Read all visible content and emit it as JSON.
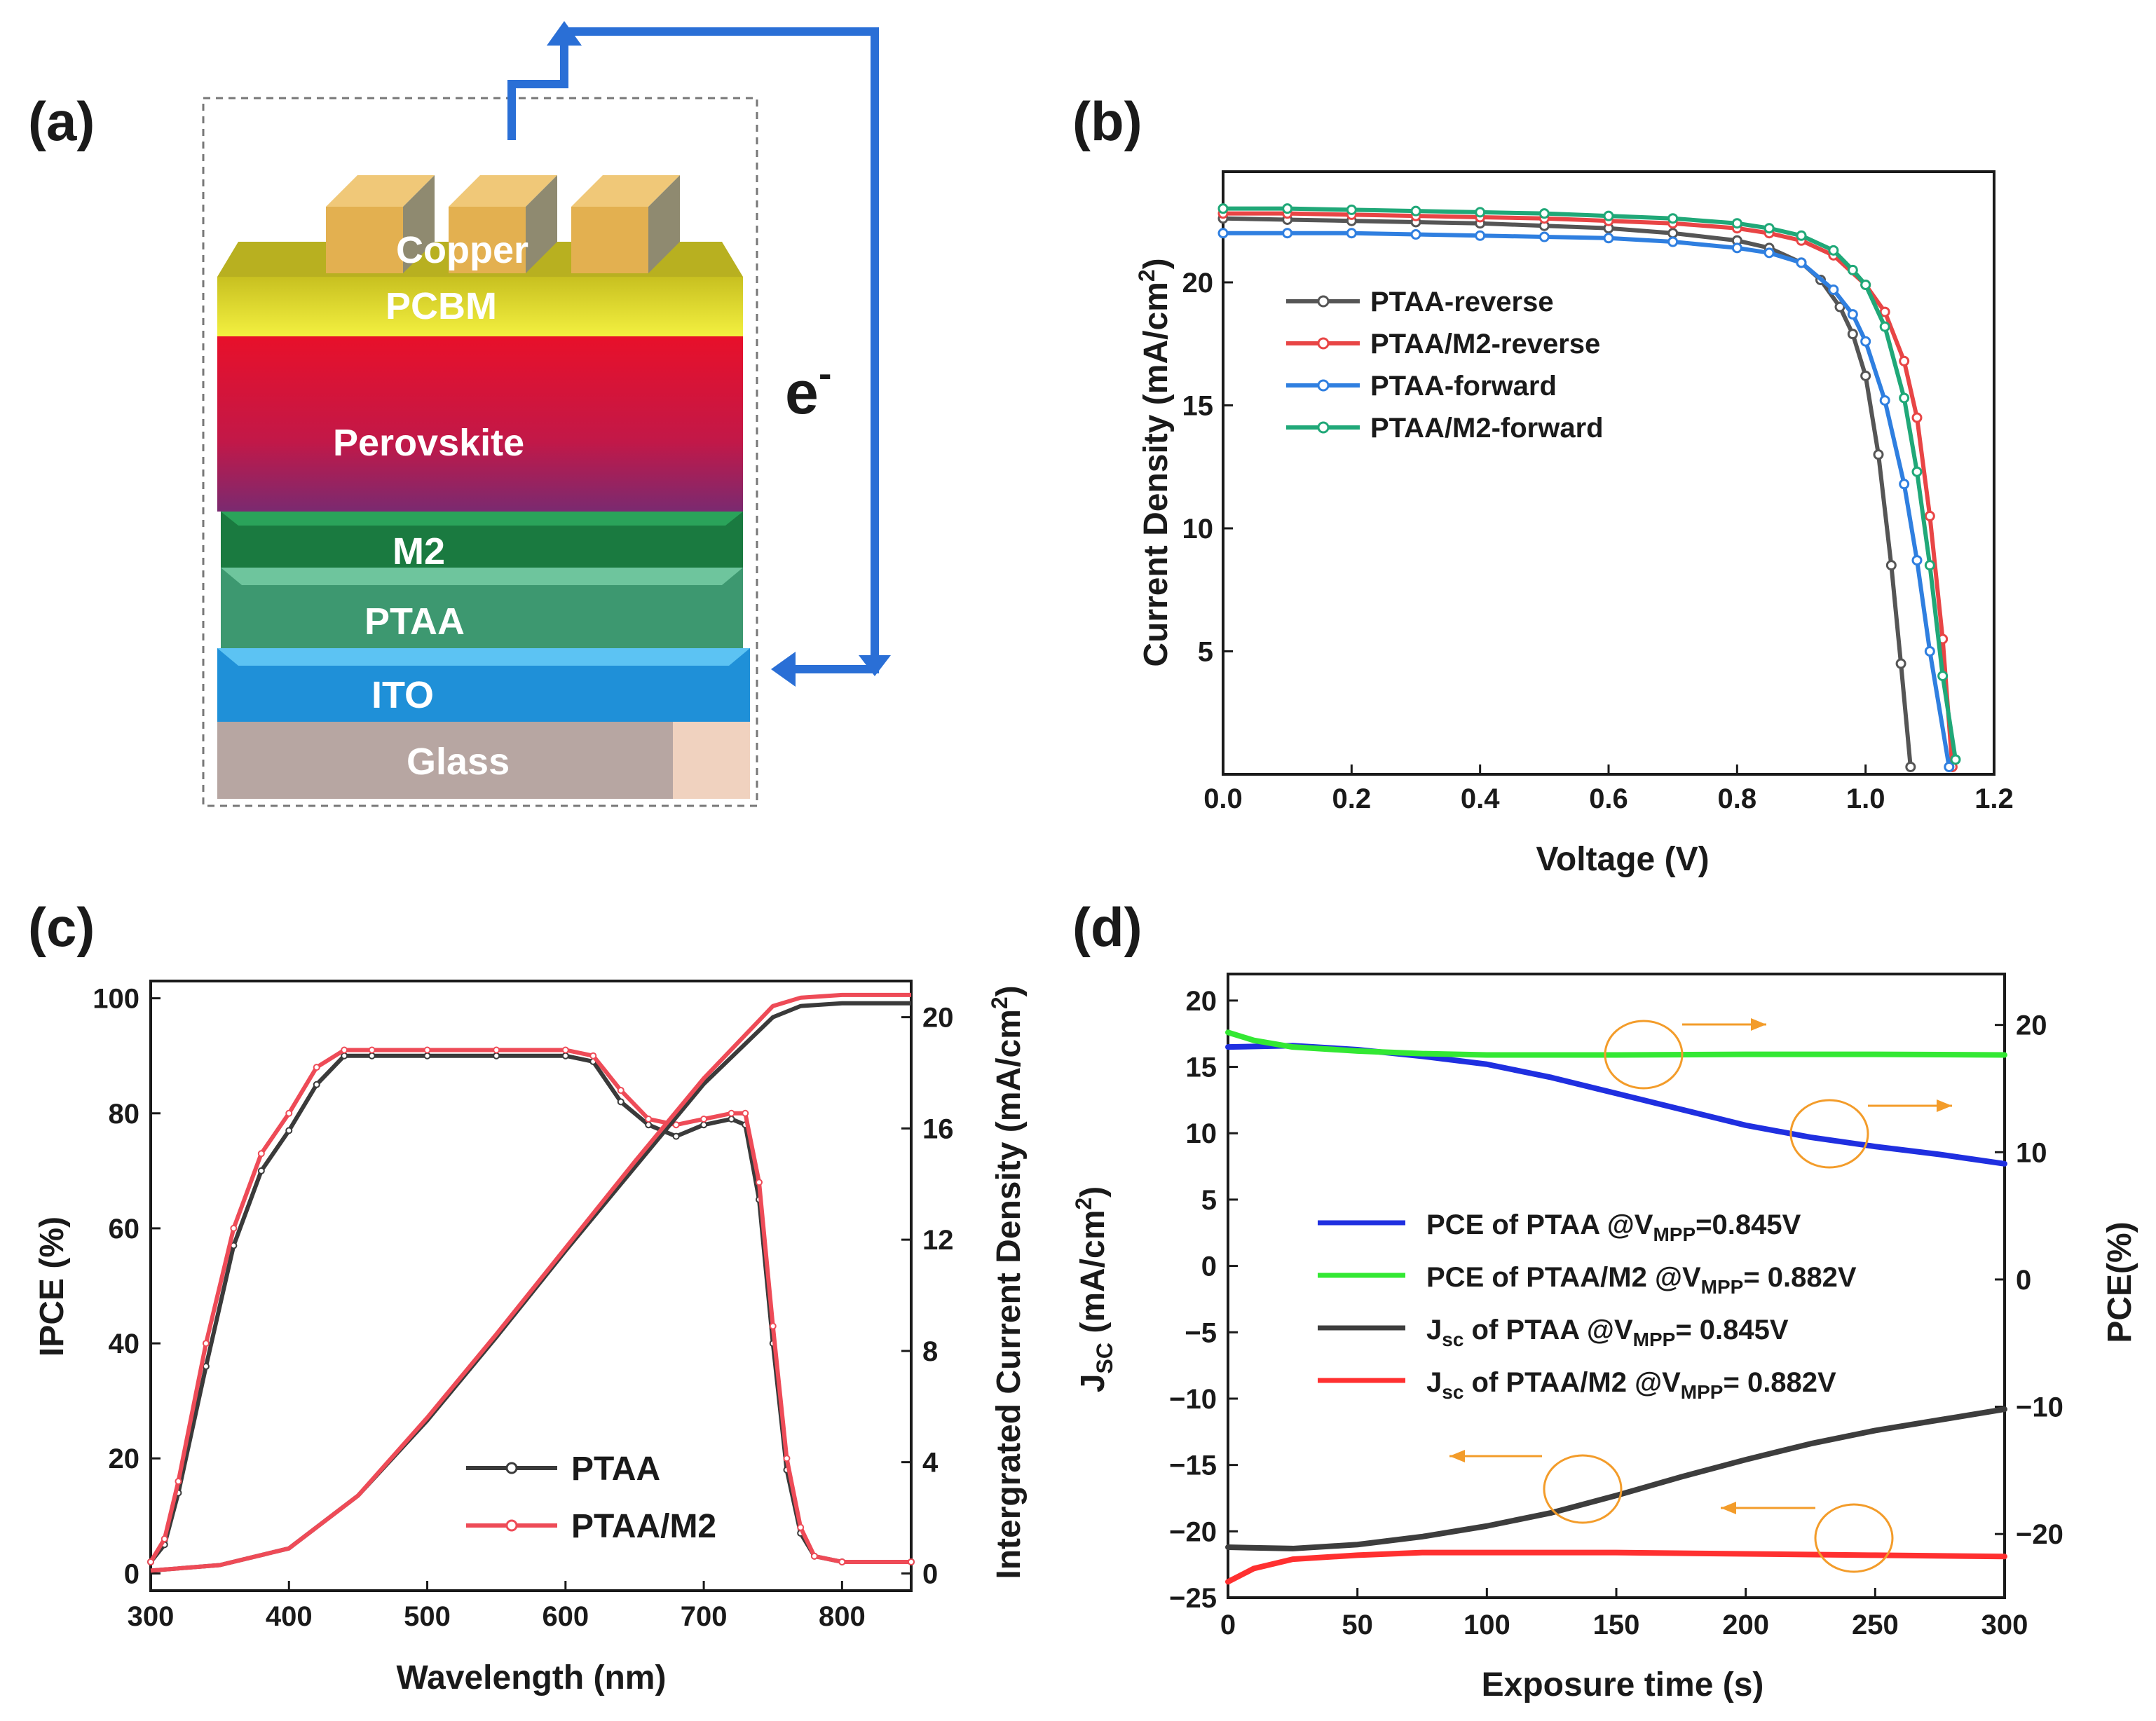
{
  "panels": {
    "a": {
      "label": "(a)",
      "layers": [
        "Copper",
        "PCBM",
        "Perovskite",
        "M2",
        "PTAA",
        "ITO",
        "Glass"
      ],
      "electron_label": "e",
      "electron_sup": "-"
    },
    "b": {
      "label": "(b)"
    },
    "c": {
      "label": "(c)"
    },
    "d": {
      "label": "(d)"
    }
  },
  "colors": {
    "axis": "#1a1a1a",
    "arrow_blue": "#2a6fd6",
    "annot_orange": "#f39c2a"
  },
  "chart_data": [
    {
      "id": "b",
      "type": "line",
      "xlabel": "Voltage (V)",
      "ylabel": "Current Density (mA/cm",
      "ylabel_sup": "2",
      "ylabel_tail": ")",
      "xlim": [
        0,
        1.2
      ],
      "ylim": [
        0,
        24.5
      ],
      "xticks": [
        "0.0",
        "0.2",
        "0.4",
        "0.6",
        "0.8",
        "1.0",
        "1.2"
      ],
      "yticks": [
        "5",
        "10",
        "15",
        "20"
      ],
      "legend_position": "top-left",
      "series": [
        {
          "name": "PTAA-reverse",
          "color": "#555555",
          "x": [
            0,
            0.1,
            0.2,
            0.3,
            0.4,
            0.5,
            0.6,
            0.7,
            0.8,
            0.85,
            0.9,
            0.93,
            0.96,
            0.98,
            1.0,
            1.02,
            1.04,
            1.055,
            1.07
          ],
          "y": [
            22.6,
            22.55,
            22.5,
            22.45,
            22.4,
            22.3,
            22.2,
            22.0,
            21.7,
            21.4,
            20.8,
            20.1,
            19.0,
            17.9,
            16.2,
            13.0,
            8.5,
            4.5,
            0.3
          ]
        },
        {
          "name": "PTAA/M2-reverse",
          "color": "#e84545",
          "x": [
            0,
            0.1,
            0.2,
            0.3,
            0.4,
            0.5,
            0.6,
            0.7,
            0.8,
            0.85,
            0.9,
            0.95,
            1.0,
            1.03,
            1.06,
            1.08,
            1.1,
            1.12,
            1.135
          ],
          "y": [
            22.8,
            22.8,
            22.75,
            22.7,
            22.65,
            22.6,
            22.5,
            22.4,
            22.2,
            22.0,
            21.7,
            21.1,
            19.9,
            18.8,
            16.8,
            14.5,
            10.5,
            5.5,
            0.3
          ]
        },
        {
          "name": "PTAA-forward",
          "color": "#2f7fe0",
          "x": [
            0,
            0.1,
            0.2,
            0.3,
            0.4,
            0.5,
            0.6,
            0.7,
            0.8,
            0.85,
            0.9,
            0.95,
            0.98,
            1.0,
            1.03,
            1.06,
            1.08,
            1.1,
            1.13
          ],
          "y": [
            22.0,
            22.0,
            22.0,
            21.95,
            21.9,
            21.85,
            21.8,
            21.65,
            21.4,
            21.2,
            20.8,
            19.7,
            18.7,
            17.6,
            15.2,
            11.8,
            8.7,
            5.0,
            0.3
          ]
        },
        {
          "name": "PTAA/M2-forward",
          "color": "#20a878",
          "x": [
            0,
            0.1,
            0.2,
            0.3,
            0.4,
            0.5,
            0.6,
            0.7,
            0.8,
            0.85,
            0.9,
            0.95,
            0.98,
            1.0,
            1.03,
            1.06,
            1.08,
            1.1,
            1.12,
            1.14
          ],
          "y": [
            23.0,
            23.0,
            22.95,
            22.9,
            22.85,
            22.8,
            22.7,
            22.6,
            22.4,
            22.2,
            21.9,
            21.3,
            20.5,
            19.9,
            18.2,
            15.3,
            12.3,
            8.5,
            4.0,
            0.6
          ]
        }
      ]
    },
    {
      "id": "c",
      "type": "line",
      "xlabel": "Wavelength (nm)",
      "ylabel": "IPCE (%)",
      "y2label": "Intergrated Current Density  (mA/cm",
      "y2label_sup": "2",
      "y2label_tail": ")",
      "xlim": [
        300,
        850
      ],
      "ylim": [
        -3,
        103
      ],
      "y2lim": [
        -0.62,
        21.3
      ],
      "xticks": [
        "300",
        "400",
        "500",
        "600",
        "700",
        "800"
      ],
      "yticks": [
        "0",
        "20",
        "40",
        "60",
        "80",
        "100"
      ],
      "y2ticks": [
        "0",
        "4",
        "8",
        "12",
        "16",
        "20"
      ],
      "legend_position": "bottom-center",
      "series": [
        {
          "name": "PTAA",
          "color": "#3a3a3a",
          "axis": "left",
          "x": [
            300,
            310,
            320,
            340,
            360,
            380,
            400,
            420,
            440,
            460,
            500,
            550,
            600,
            620,
            640,
            660,
            680,
            700,
            720,
            730,
            740,
            750,
            760,
            770,
            780,
            800,
            850
          ],
          "y": [
            2,
            5,
            14,
            36,
            57,
            70,
            77,
            85,
            90,
            90,
            90,
            90,
            90,
            89,
            82,
            78,
            76,
            78,
            79,
            78,
            65,
            40,
            18,
            7,
            3,
            2,
            2
          ]
        },
        {
          "name": "PTAA/M2",
          "color": "#ee4b57",
          "axis": "left",
          "x": [
            300,
            310,
            320,
            340,
            360,
            380,
            400,
            420,
            440,
            460,
            500,
            550,
            600,
            620,
            640,
            660,
            680,
            700,
            720,
            730,
            740,
            750,
            760,
            770,
            780,
            800,
            850
          ],
          "y": [
            2,
            6,
            16,
            40,
            60,
            73,
            80,
            88,
            91,
            91,
            91,
            91,
            91,
            90,
            84,
            79,
            78,
            79,
            80,
            80,
            68,
            43,
            20,
            8,
            3,
            2,
            2
          ]
        },
        {
          "name": "",
          "color": "#3a3a3a",
          "axis": "right",
          "x": [
            300,
            350,
            400,
            450,
            500,
            550,
            600,
            650,
            700,
            750,
            770,
            800,
            850
          ],
          "y": [
            0.1,
            0.3,
            0.9,
            2.8,
            5.5,
            8.5,
            11.6,
            14.6,
            17.6,
            20.0,
            20.4,
            20.5,
            20.5
          ]
        },
        {
          "name": "",
          "color": "#ee4b57",
          "axis": "right",
          "x": [
            300,
            350,
            400,
            450,
            500,
            550,
            600,
            650,
            700,
            750,
            770,
            800,
            850
          ],
          "y": [
            0.1,
            0.3,
            0.9,
            2.8,
            5.6,
            8.6,
            11.7,
            14.8,
            17.8,
            20.4,
            20.7,
            20.8,
            20.8
          ]
        }
      ]
    },
    {
      "id": "d",
      "type": "line",
      "xlabel": "Exposure time (s)",
      "ylabel_main": "J",
      "ylabel_sub": "SC",
      "ylabel_tail": " (mA/cm",
      "ylabel_sup": "2",
      "ylabel_end": ")",
      "y2label": "PCE(%)",
      "xlim": [
        0,
        300
      ],
      "ylim": [
        -25,
        22
      ],
      "y2lim": [
        -25,
        24
      ],
      "xticks": [
        "0",
        "50",
        "100",
        "150",
        "200",
        "250",
        "300"
      ],
      "yticks": [
        "20",
        "15",
        "10",
        "5",
        "0",
        "−5",
        "−10",
        "−15",
        "−20",
        "−25"
      ],
      "y2ticks": [
        "20",
        "10",
        "0",
        "−10",
        "−20"
      ],
      "legend_position": "center",
      "series": [
        {
          "name_main": "PCE of PTAA @V",
          "name_sub": "MPP",
          "name_tail": "=0.845V",
          "color": "#1f2fe0",
          "axis": "left",
          "x": [
            0,
            25,
            50,
            75,
            100,
            125,
            150,
            175,
            200,
            225,
            250,
            275,
            300
          ],
          "y": [
            16.5,
            16.6,
            16.3,
            15.8,
            15.2,
            14.2,
            13.0,
            11.8,
            10.6,
            9.7,
            9.0,
            8.4,
            7.7
          ]
        },
        {
          "name_main": "PCE of PTAA/M2 @V",
          "name_sub": "MPP",
          "name_tail": "= 0.882V",
          "color": "#33e833",
          "axis": "left",
          "x": [
            0,
            10,
            25,
            50,
            75,
            100,
            150,
            200,
            250,
            300
          ],
          "y": [
            17.6,
            17.0,
            16.5,
            16.2,
            16.0,
            15.9,
            15.9,
            15.95,
            15.95,
            15.9
          ]
        },
        {
          "name_main": "J",
          "name_sub": "sc",
          "name_tail": " of PTAA @V",
          "name_sub2": "MPP",
          "name_end": "= 0.845V",
          "color": "#3d3d3d",
          "axis": "left",
          "x": [
            0,
            25,
            50,
            75,
            100,
            125,
            150,
            175,
            200,
            225,
            250,
            275,
            300
          ],
          "y": [
            -21.2,
            -21.3,
            -21.0,
            -20.4,
            -19.6,
            -18.6,
            -17.3,
            -15.9,
            -14.6,
            -13.4,
            -12.4,
            -11.6,
            -10.8
          ]
        },
        {
          "name_main": "J",
          "name_sub": "sc",
          "name_tail": " of PTAA/M2 @V",
          "name_sub2": "MPP",
          "name_end": "= 0.882V",
          "color": "#ff3030",
          "axis": "left",
          "x": [
            0,
            10,
            25,
            50,
            75,
            100,
            150,
            200,
            250,
            300
          ],
          "y": [
            -23.8,
            -22.8,
            -22.1,
            -21.8,
            -21.6,
            -21.6,
            -21.6,
            -21.7,
            -21.8,
            -21.9
          ]
        }
      ]
    }
  ]
}
